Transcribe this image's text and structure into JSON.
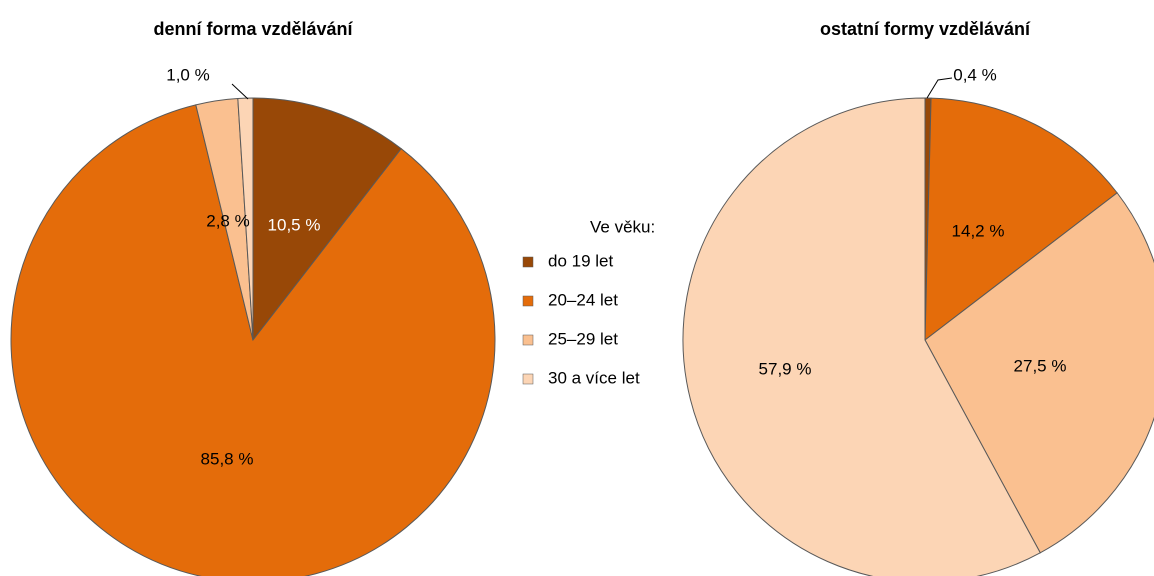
{
  "chart_data": [
    {
      "type": "pie",
      "title": "denní forma vzdělávání",
      "categories": [
        "do 19 let",
        "20–24 let",
        "25–29 let",
        "30 a více let"
      ],
      "values": [
        10.5,
        85.8,
        2.8,
        1.0
      ],
      "value_labels": [
        "10,5 %",
        "85,8 %",
        "2,8 %",
        "1,0 %"
      ],
      "colors": [
        "#984807",
        "#e46c0a",
        "#fac090",
        "#fcd5b5"
      ]
    },
    {
      "type": "pie",
      "title": "ostatní formy vzdělávání",
      "categories": [
        "do 19 let",
        "20–24 let",
        "25–29 let",
        "30 a více let"
      ],
      "values": [
        0.4,
        14.2,
        27.5,
        57.9
      ],
      "value_labels": [
        "0,4 %",
        "14,2 %",
        "27,5 %",
        "57,9 %"
      ],
      "colors": [
        "#984807",
        "#e46c0a",
        "#fac090",
        "#fcd5b5"
      ]
    }
  ],
  "legend": {
    "title": "Ve věku:"
  }
}
